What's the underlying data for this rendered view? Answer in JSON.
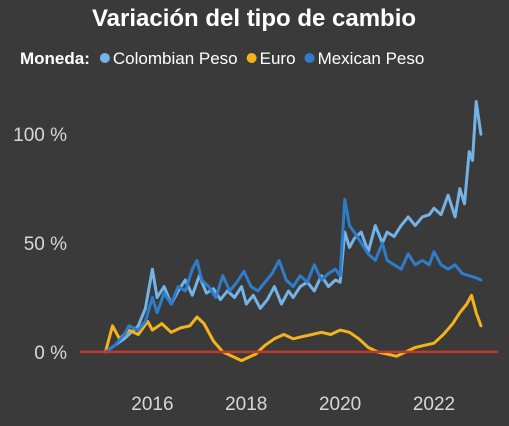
{
  "chart_data": {
    "type": "line",
    "title": "Variación del tipo de cambio",
    "legend": {
      "label": "Moneda:",
      "placement": "top"
    },
    "xlabel": "",
    "ylabel": "",
    "x_ticks": [
      "2016",
      "2018",
      "2020",
      "2022"
    ],
    "x_tick_values": [
      2016,
      2018,
      2020,
      2022
    ],
    "y_ticks": [
      "0 %",
      "50 %",
      "100 %"
    ],
    "y_tick_values": [
      0,
      50,
      100
    ],
    "xlim": [
      2014.5,
      2023.3
    ],
    "ylim": [
      -12,
      118
    ],
    "zero_line_color": "#c0392b",
    "series": [
      {
        "name": "Colombian Peso",
        "color": "#74b3e6",
        "x": [
          2015.0,
          2015.2,
          2015.4,
          2015.5,
          2015.7,
          2015.85,
          2016.0,
          2016.1,
          2016.25,
          2016.4,
          2016.55,
          2016.7,
          2016.85,
          2017.0,
          2017.15,
          2017.3,
          2017.45,
          2017.6,
          2017.75,
          2017.9,
          2018.0,
          2018.15,
          2018.3,
          2018.45,
          2018.6,
          2018.75,
          2018.9,
          2019.0,
          2019.15,
          2019.3,
          2019.45,
          2019.6,
          2019.75,
          2019.9,
          2020.0,
          2020.1,
          2020.2,
          2020.3,
          2020.45,
          2020.6,
          2020.75,
          2020.9,
          2021.0,
          2021.15,
          2021.3,
          2021.45,
          2021.6,
          2021.75,
          2021.9,
          2022.0,
          2022.15,
          2022.3,
          2022.45,
          2022.55,
          2022.65,
          2022.75,
          2022.82,
          2022.9,
          2023.0
        ],
        "values": [
          0,
          3,
          6,
          8,
          12,
          20,
          38,
          25,
          30,
          22,
          28,
          33,
          26,
          35,
          27,
          29,
          24,
          28,
          25,
          30,
          22,
          26,
          20,
          24,
          30,
          22,
          28,
          25,
          30,
          32,
          28,
          35,
          30,
          33,
          32,
          55,
          48,
          52,
          55,
          46,
          58,
          50,
          55,
          53,
          58,
          62,
          58,
          62,
          63,
          66,
          63,
          72,
          62,
          75,
          68,
          92,
          88,
          115,
          100
        ]
      },
      {
        "name": "Euro",
        "color": "#f5b31b",
        "x": [
          2015.0,
          2015.15,
          2015.3,
          2015.5,
          2015.7,
          2015.9,
          2016.0,
          2016.2,
          2016.4,
          2016.6,
          2016.8,
          2016.95,
          2017.1,
          2017.3,
          2017.5,
          2017.7,
          2017.9,
          2018.0,
          2018.2,
          2018.4,
          2018.6,
          2018.8,
          2019.0,
          2019.2,
          2019.4,
          2019.6,
          2019.8,
          2020.0,
          2020.2,
          2020.4,
          2020.6,
          2020.8,
          2021.0,
          2021.2,
          2021.4,
          2021.6,
          2021.8,
          2022.0,
          2022.2,
          2022.4,
          2022.55,
          2022.7,
          2022.8,
          2022.9,
          2023.0
        ],
        "values": [
          0,
          12,
          6,
          10,
          8,
          14,
          10,
          13,
          9,
          11,
          12,
          16,
          13,
          5,
          0,
          -2,
          -4,
          -3,
          -1,
          3,
          6,
          8,
          6,
          7,
          8,
          9,
          8,
          10,
          9,
          6,
          2,
          0,
          -1,
          -2,
          0,
          2,
          3,
          4,
          8,
          13,
          18,
          22,
          26,
          18,
          12
        ]
      },
      {
        "name": "Mexican Peso",
        "color": "#2f7cc8",
        "x": [
          2015.0,
          2015.2,
          2015.4,
          2015.5,
          2015.7,
          2015.85,
          2016.0,
          2016.1,
          2016.25,
          2016.4,
          2016.55,
          2016.7,
          2016.85,
          2016.95,
          2017.05,
          2017.2,
          2017.35,
          2017.5,
          2017.65,
          2017.8,
          2017.95,
          2018.1,
          2018.25,
          2018.4,
          2018.55,
          2018.7,
          2018.85,
          2019.0,
          2019.15,
          2019.3,
          2019.45,
          2019.6,
          2019.75,
          2019.9,
          2020.0,
          2020.1,
          2020.2,
          2020.3,
          2020.45,
          2020.6,
          2020.75,
          2020.9,
          2021.0,
          2021.15,
          2021.3,
          2021.45,
          2021.6,
          2021.75,
          2021.9,
          2022.0,
          2022.15,
          2022.3,
          2022.45,
          2022.6,
          2022.75,
          2022.9,
          2023.0
        ],
        "values": [
          0,
          3,
          8,
          12,
          10,
          14,
          25,
          18,
          27,
          22,
          30,
          28,
          38,
          42,
          33,
          30,
          25,
          35,
          28,
          32,
          37,
          30,
          28,
          32,
          36,
          42,
          33,
          30,
          35,
          32,
          40,
          33,
          36,
          38,
          35,
          70,
          58,
          55,
          50,
          45,
          42,
          50,
          42,
          40,
          38,
          45,
          40,
          42,
          40,
          46,
          40,
          38,
          40,
          36,
          35,
          34,
          33
        ]
      }
    ]
  }
}
